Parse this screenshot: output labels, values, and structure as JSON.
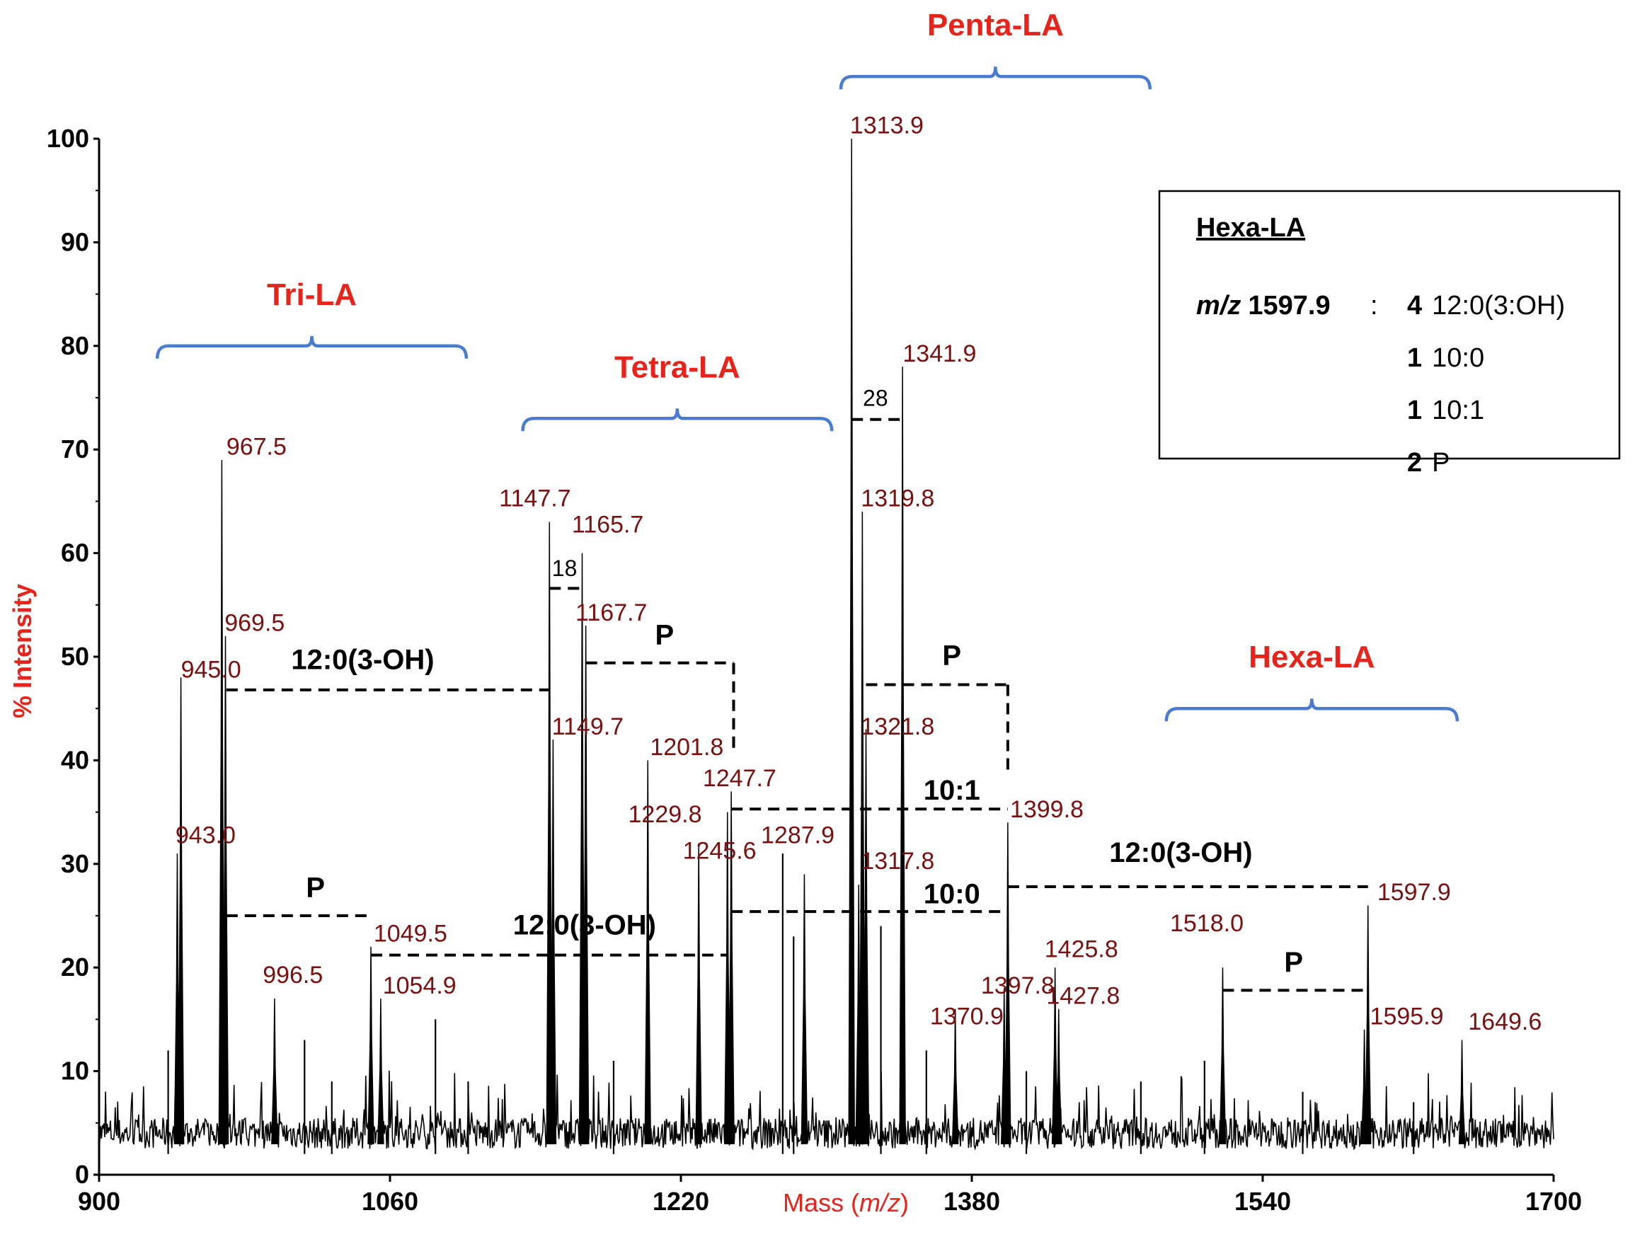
{
  "chart_data": {
    "type": "line",
    "title": "",
    "xlabel": "Mass (m/z)",
    "xlabel_prefix": "Mass (",
    "xlabel_italic": "m/z",
    "xlabel_suffix": ")",
    "ylabel": "% Intensity",
    "xlim": [
      900,
      1700
    ],
    "ylim": [
      0,
      100
    ],
    "x_ticks": [
      900,
      1060,
      1220,
      1380,
      1540,
      1700
    ],
    "y_ticks": [
      0,
      10,
      20,
      30,
      40,
      50,
      60,
      70,
      80,
      90,
      100
    ],
    "baseline_noise_level": 4,
    "peaks": [
      {
        "mz": 943.0,
        "intensity": 31
      },
      {
        "mz": 945.0,
        "intensity": 48
      },
      {
        "mz": 967.5,
        "intensity": 69
      },
      {
        "mz": 969.5,
        "intensity": 52
      },
      {
        "mz": 996.5,
        "intensity": 17
      },
      {
        "mz": 1049.5,
        "intensity": 22
      },
      {
        "mz": 1054.9,
        "intensity": 17
      },
      {
        "mz": 1147.7,
        "intensity": 63
      },
      {
        "mz": 1149.7,
        "intensity": 42
      },
      {
        "mz": 1165.7,
        "intensity": 60
      },
      {
        "mz": 1167.7,
        "intensity": 53
      },
      {
        "mz": 1201.8,
        "intensity": 40
      },
      {
        "mz": 1229.8,
        "intensity": 32
      },
      {
        "mz": 1245.6,
        "intensity": 35
      },
      {
        "mz": 1247.7,
        "intensity": 37
      },
      {
        "mz": 1287.9,
        "intensity": 29
      },
      {
        "mz": 1313.9,
        "intensity": 100
      },
      {
        "mz": 1317.8,
        "intensity": 28
      },
      {
        "mz": 1319.8,
        "intensity": 64
      },
      {
        "mz": 1321.8,
        "intensity": 43
      },
      {
        "mz": 1341.9,
        "intensity": 78
      },
      {
        "mz": 1370.9,
        "intensity": 16
      },
      {
        "mz": 1397.8,
        "intensity": 18
      },
      {
        "mz": 1399.8,
        "intensity": 34
      },
      {
        "mz": 1425.8,
        "intensity": 20
      },
      {
        "mz": 1427.8,
        "intensity": 16
      },
      {
        "mz": 1518.0,
        "intensity": 20
      },
      {
        "mz": 1595.9,
        "intensity": 14
      },
      {
        "mz": 1597.9,
        "intensity": 26
      },
      {
        "mz": 1649.6,
        "intensity": 13
      }
    ],
    "minor_peaks": [
      {
        "mz": 938,
        "intensity": 12
      },
      {
        "mz": 1013,
        "intensity": 13
      },
      {
        "mz": 1028,
        "intensity": 9
      },
      {
        "mz": 1085,
        "intensity": 15
      },
      {
        "mz": 1103,
        "intensity": 9
      },
      {
        "mz": 1183,
        "intensity": 11
      },
      {
        "mz": 1276,
        "intensity": 31
      },
      {
        "mz": 1282,
        "intensity": 23
      },
      {
        "mz": 1330,
        "intensity": 24
      },
      {
        "mz": 1355,
        "intensity": 12
      },
      {
        "mz": 1410,
        "intensity": 10
      },
      {
        "mz": 1473,
        "intensity": 9
      },
      {
        "mz": 1508,
        "intensity": 11
      },
      {
        "mz": 1562,
        "intensity": 8
      },
      {
        "mz": 1623,
        "intensity": 7
      }
    ],
    "peak_labels": [
      {
        "text": "967.5",
        "mz": 970,
        "y": 69.5
      },
      {
        "text": "969.5",
        "mz": 969,
        "y": 52.5
      },
      {
        "text": "945.0",
        "mz": 945,
        "y": 48
      },
      {
        "text": "943.0",
        "mz": 942,
        "y": 32
      },
      {
        "text": "996.5",
        "mz": 990,
        "y": 18.5
      },
      {
        "text": "1049.5",
        "mz": 1051,
        "y": 22.5
      },
      {
        "text": "1054.9",
        "mz": 1056,
        "y": 17.5
      },
      {
        "text": "1147.7",
        "mz": 1120,
        "y": 64.5
      },
      {
        "text": "1165.7",
        "mz": 1160,
        "y": 62
      },
      {
        "text": "1167.7",
        "mz": 1162,
        "y": 53.5
      },
      {
        "text": "1149.7",
        "mz": 1149,
        "y": 42.5
      },
      {
        "text": "1201.8",
        "mz": 1203,
        "y": 40.5
      },
      {
        "text": "1229.8",
        "mz": 1191,
        "y": 34
      },
      {
        "text": "1245.6",
        "mz": 1221,
        "y": 30.5
      },
      {
        "text": "1247.7",
        "mz": 1232,
        "y": 37.5
      },
      {
        "text": "1287.9",
        "mz": 1264,
        "y": 32
      },
      {
        "text": "1313.9",
        "mz": 1313,
        "y": 100.5
      },
      {
        "text": "1319.8",
        "mz": 1319,
        "y": 64.5
      },
      {
        "text": "1317.8",
        "mz": 1319,
        "y": 29.5
      },
      {
        "text": "1321.8",
        "mz": 1319,
        "y": 42.5
      },
      {
        "text": "1341.9",
        "mz": 1342,
        "y": 78.5
      },
      {
        "text": "1370.9",
        "mz": 1357,
        "y": 14.5
      },
      {
        "text": "1397.8",
        "mz": 1385,
        "y": 17.5
      },
      {
        "text": "1399.8",
        "mz": 1401,
        "y": 34.5
      },
      {
        "text": "1425.8",
        "mz": 1420,
        "y": 21
      },
      {
        "text": "1427.8",
        "mz": 1421,
        "y": 16.5
      },
      {
        "text": "1518.0",
        "mz": 1489,
        "y": 23.5
      },
      {
        "text": "1597.9",
        "mz": 1603,
        "y": 26.5
      },
      {
        "text": "1595.9",
        "mz": 1599,
        "y": 14.5
      },
      {
        "text": "1649.6",
        "mz": 1653,
        "y": 14
      }
    ],
    "group_brackets": [
      {
        "label": "Tri-LA",
        "x_start": 932,
        "x_end": 1102,
        "y": 80
      },
      {
        "label": "Tetra-LA",
        "x_start": 1133,
        "x_end": 1303,
        "y": 73
      },
      {
        "label": "Penta-LA",
        "x_start": 1308,
        "x_end": 1478,
        "y": 106
      },
      {
        "label": "Hexa-LA",
        "x_start": 1487,
        "x_end": 1647,
        "y": 45
      }
    ],
    "mass_difference_annotations": [
      {
        "label": "12:0(3-OH)",
        "from_mz": 970,
        "to_mz": 1147.7,
        "y": 46.8
      },
      {
        "label": "P",
        "from_mz": 970,
        "to_mz": 1049.5,
        "y": 25
      },
      {
        "label": "12:0(3-OH)",
        "from_mz": 1049.5,
        "to_mz": 1246,
        "y": 21.2
      },
      {
        "label": "P",
        "from_mz": 1167.7,
        "to_mz": 1249,
        "y": 49.4
      },
      {
        "label": "18",
        "from_mz": 1147.7,
        "to_mz": 1165.7,
        "y": 56.6
      },
      {
        "label": "28",
        "from_mz": 1313.9,
        "to_mz": 1341.9,
        "y": 72.9
      },
      {
        "label": "P",
        "from_mz": 1321.8,
        "to_mz": 1399.8,
        "y": 47.3
      },
      {
        "label": "10:1",
        "from_mz": 1247.7,
        "to_mz": 1399.8,
        "y": 35.3
      },
      {
        "label": "10:0",
        "from_mz": 1247.7,
        "to_mz": 1399.8,
        "y": 25.4
      },
      {
        "label": "12:0(3-OH)",
        "from_mz": 1399.8,
        "to_mz": 1597.9,
        "y": 27.8
      },
      {
        "label": "P",
        "from_mz": 1518,
        "to_mz": 1595.9,
        "y": 17.8
      }
    ]
  },
  "legend_box": {
    "title": "Hexa-LA",
    "mz_italic": "m/z",
    "mz_value": "1597.9",
    "separator": ":",
    "rows": [
      {
        "count": "4",
        "chain": "12:0(3:OH)"
      },
      {
        "count": "1",
        "chain": "10:0"
      },
      {
        "count": "1",
        "chain": "10:1"
      },
      {
        "count": "2",
        "chain": "P"
      }
    ]
  },
  "colors": {
    "spectrum": "#000000",
    "group_label": "#e8231b",
    "axis_title": "#e8231b",
    "peak_label": "#7a1010",
    "bracket": "#4a7bd0"
  }
}
